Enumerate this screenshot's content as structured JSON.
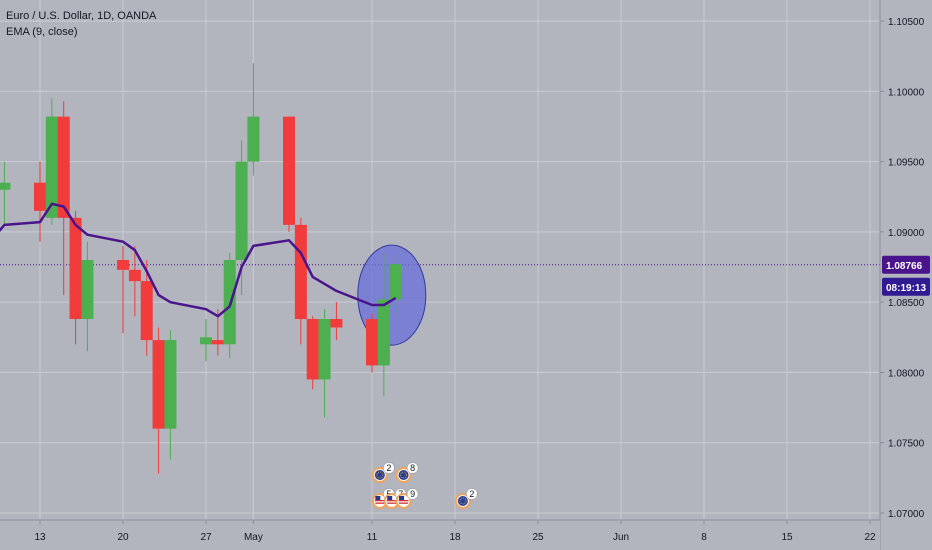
{
  "legend": {
    "symbol": "Euro / U.S. Dollar, 1D, OANDA",
    "indicator": "EMA (9, close)"
  },
  "price_tag": {
    "price": "1.08766",
    "countdown": "08:19:13"
  },
  "colors": {
    "background": "#b2b5be",
    "grid": "#c9ccd3",
    "up": "#4caf50",
    "down": "#f23b3b",
    "ema": "#4a148c",
    "price_line": "#4a148c",
    "ellipse_fill": "#6a6fd8",
    "ellipse_stroke": "#2f3a9e",
    "axis_bg": "#b2b5be",
    "tag_bg": "#4a148c",
    "tag_bg_2": "#311b92"
  },
  "chart_data": {
    "type": "candlestick",
    "title": "",
    "xlabel": "",
    "ylabel": "",
    "ylim": [
      1.0695,
      1.1065
    ],
    "y_ticks": [
      "1.10500",
      "1.10000",
      "1.09500",
      "1.09000",
      "1.08500",
      "1.08000",
      "1.07500",
      "1.07000"
    ],
    "y_tick_values": [
      1.105,
      1.1,
      1.095,
      1.09,
      1.085,
      1.08,
      1.075,
      1.07
    ],
    "x_ticks": [
      {
        "label": "13",
        "date": "2020-04-13"
      },
      {
        "label": "20",
        "date": "2020-04-20"
      },
      {
        "label": "27",
        "date": "2020-04-27"
      },
      {
        "label": "May",
        "date": "2020-05-01"
      },
      {
        "label": "11",
        "date": "2020-05-11"
      },
      {
        "label": "18",
        "date": "2020-05-18"
      },
      {
        "label": "25",
        "date": "2020-05-25"
      },
      {
        "label": "Jun",
        "date": "2020-06-01"
      },
      {
        "label": "8",
        "date": "2020-06-08"
      },
      {
        "label": "15",
        "date": "2020-06-15"
      },
      {
        "label": "22",
        "date": "2020-06-22"
      }
    ],
    "candles": [
      {
        "date": "2020-04-09",
        "open": 1.086,
        "high": 1.095,
        "low": 1.084,
        "close": 1.093
      },
      {
        "date": "2020-04-10",
        "open": 1.093,
        "high": 1.095,
        "low": 1.0905,
        "close": 1.0935
      },
      {
        "date": "2020-04-13",
        "open": 1.0935,
        "high": 1.095,
        "low": 1.0893,
        "close": 1.0915
      },
      {
        "date": "2020-04-14",
        "open": 1.091,
        "high": 1.0995,
        "low": 1.0905,
        "close": 1.0982
      },
      {
        "date": "2020-04-15",
        "open": 1.0982,
        "high": 1.0993,
        "low": 1.0855,
        "close": 1.091
      },
      {
        "date": "2020-04-16",
        "open": 1.091,
        "high": 1.0915,
        "low": 1.082,
        "close": 1.0838
      },
      {
        "date": "2020-04-17",
        "open": 1.0838,
        "high": 1.0893,
        "low": 1.0815,
        "close": 1.088
      },
      {
        "date": "2020-04-20",
        "open": 1.088,
        "high": 1.089,
        "low": 1.0828,
        "close": 1.0873
      },
      {
        "date": "2020-04-21",
        "open": 1.0873,
        "high": 1.089,
        "low": 1.084,
        "close": 1.0865
      },
      {
        "date": "2020-04-22",
        "open": 1.0865,
        "high": 1.088,
        "low": 1.0812,
        "close": 1.0823
      },
      {
        "date": "2020-04-23",
        "open": 1.0823,
        "high": 1.0832,
        "low": 1.0728,
        "close": 1.076
      },
      {
        "date": "2020-04-24",
        "open": 1.076,
        "high": 1.083,
        "low": 1.0738,
        "close": 1.0823
      },
      {
        "date": "2020-04-27",
        "open": 1.082,
        "high": 1.0838,
        "low": 1.0808,
        "close": 1.0825
      },
      {
        "date": "2020-04-28",
        "open": 1.0823,
        "high": 1.0845,
        "low": 1.0812,
        "close": 1.082
      },
      {
        "date": "2020-04-29",
        "open": 1.082,
        "high": 1.0885,
        "low": 1.081,
        "close": 1.088
      },
      {
        "date": "2020-04-30",
        "open": 1.088,
        "high": 1.0965,
        "low": 1.0855,
        "close": 1.095
      },
      {
        "date": "2020-05-01",
        "open": 1.095,
        "high": 1.102,
        "low": 1.094,
        "close": 1.0982
      },
      {
        "date": "2020-05-04",
        "open": 1.0982,
        "high": 1.0982,
        "low": 1.09,
        "close": 1.0905
      },
      {
        "date": "2020-05-05",
        "open": 1.0905,
        "high": 1.091,
        "low": 1.082,
        "close": 1.0838
      },
      {
        "date": "2020-05-06",
        "open": 1.0838,
        "high": 1.084,
        "low": 1.0788,
        "close": 1.0795
      },
      {
        "date": "2020-05-07",
        "open": 1.0795,
        "high": 1.0845,
        "low": 1.0768,
        "close": 1.0838
      },
      {
        "date": "2020-05-08",
        "open": 1.0838,
        "high": 1.085,
        "low": 1.0823,
        "close": 1.0832
      },
      {
        "date": "2020-05-11",
        "open": 1.0838,
        "high": 1.0842,
        "low": 1.08,
        "close": 1.0805
      },
      {
        "date": "2020-05-12",
        "open": 1.0805,
        "high": 1.0885,
        "low": 1.0783,
        "close": 1.0852
      },
      {
        "date": "2020-05-13",
        "open": 1.0852,
        "high": 1.088,
        "low": 1.084,
        "close": 1.0877
      }
    ],
    "ema": {
      "name": "EMA (9, close)",
      "points": [
        {
          "date": "2020-04-09",
          "value": 1.0895
        },
        {
          "date": "2020-04-10",
          "value": 1.0905
        },
        {
          "date": "2020-04-13",
          "value": 1.0907
        },
        {
          "date": "2020-04-14",
          "value": 1.092
        },
        {
          "date": "2020-04-15",
          "value": 1.0918
        },
        {
          "date": "2020-04-16",
          "value": 1.0905
        },
        {
          "date": "2020-04-17",
          "value": 1.0898
        },
        {
          "date": "2020-04-20",
          "value": 1.0893
        },
        {
          "date": "2020-04-21",
          "value": 1.0887
        },
        {
          "date": "2020-04-22",
          "value": 1.0872
        },
        {
          "date": "2020-04-23",
          "value": 1.0855
        },
        {
          "date": "2020-04-24",
          "value": 1.085
        },
        {
          "date": "2020-04-27",
          "value": 1.0845
        },
        {
          "date": "2020-04-28",
          "value": 1.084
        },
        {
          "date": "2020-04-29",
          "value": 1.0847
        },
        {
          "date": "2020-04-30",
          "value": 1.0875
        },
        {
          "date": "2020-05-01",
          "value": 1.089
        },
        {
          "date": "2020-05-04",
          "value": 1.0894
        },
        {
          "date": "2020-05-05",
          "value": 1.0885
        },
        {
          "date": "2020-05-06",
          "value": 1.0868
        },
        {
          "date": "2020-05-07",
          "value": 1.0863
        },
        {
          "date": "2020-05-08",
          "value": 1.0858
        },
        {
          "date": "2020-05-11",
          "value": 1.0848
        },
        {
          "date": "2020-05-12",
          "value": 1.0848
        },
        {
          "date": "2020-05-13",
          "value": 1.0853
        }
      ]
    },
    "last_price": 1.08766,
    "grid": true
  },
  "events": [
    {
      "date": "2020-05-12",
      "row": 1,
      "icon": "eu-flag-icon",
      "count": "2"
    },
    {
      "date": "2020-05-14",
      "row": 1,
      "icon": "eu-flag-icon",
      "count": "8"
    },
    {
      "date": "2020-05-12",
      "row": 2,
      "icon": "us-flag-icon",
      "count": "5"
    },
    {
      "date": "2020-05-13",
      "row": 2,
      "icon": "us-flag-icon",
      "count": "7"
    },
    {
      "date": "2020-05-14",
      "row": 2,
      "icon": "us-flag-icon",
      "count": "9"
    },
    {
      "date": "2020-05-19",
      "row": 2,
      "icon": "eu-flag-icon",
      "count": "2"
    }
  ]
}
